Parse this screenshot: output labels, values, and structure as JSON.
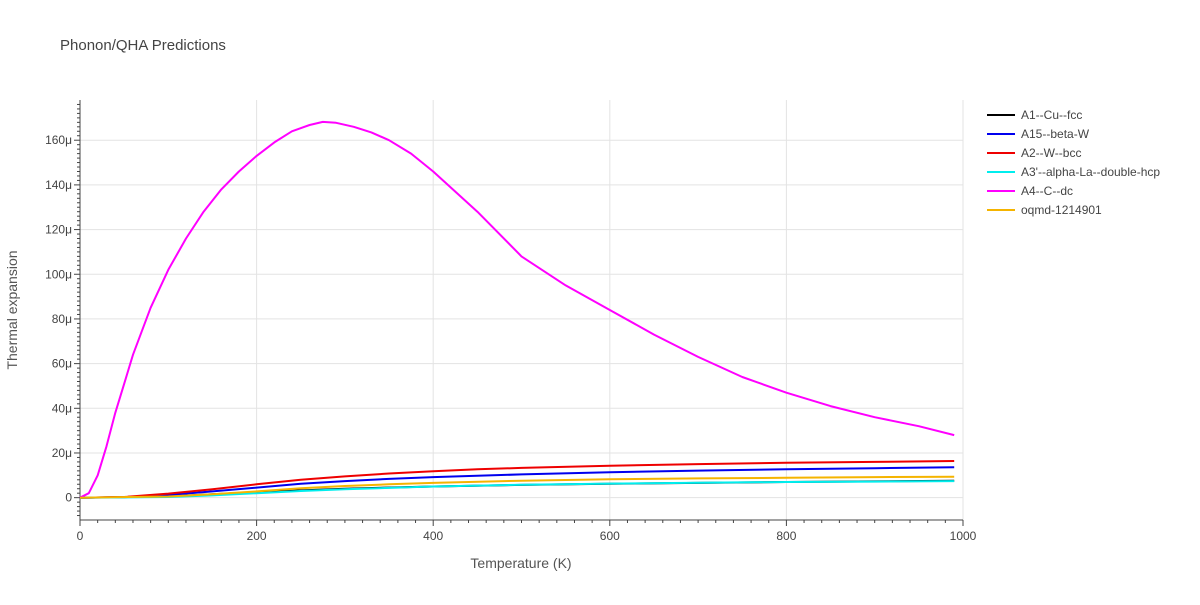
{
  "chart_data": {
    "type": "line",
    "title": "Phonon/QHA Predictions",
    "xlabel": "Temperature (K)",
    "ylabel": "Thermal expansion",
    "xlim": [
      0,
      1000
    ],
    "ylim": [
      -10,
      178
    ],
    "grid": true,
    "legend_position": "right",
    "x_ticks": [
      0,
      200,
      400,
      600,
      800,
      1000
    ],
    "x_tick_labels": [
      "0",
      "200",
      "400",
      "600",
      "800",
      "1000"
    ],
    "y_ticks": [
      0,
      20,
      40,
      60,
      80,
      100,
      120,
      140,
      160
    ],
    "y_tick_labels": [
      "0",
      "20μ",
      "40μ",
      "60μ",
      "80μ",
      "100μ",
      "120μ",
      "140μ",
      "160μ"
    ],
    "series": [
      {
        "name": "A1--Cu--fcc",
        "color": "#000000",
        "x": [
          0,
          100,
          200,
          300,
          400,
          500,
          600,
          700,
          800,
          900,
          990
        ],
        "y": [
          0,
          0.5,
          2.5,
          4.0,
          5.0,
          5.7,
          6.2,
          6.6,
          7.0,
          7.3,
          7.6
        ]
      },
      {
        "name": "A15--beta-W",
        "color": "#0000ee",
        "x": [
          0,
          50,
          100,
          150,
          200,
          250,
          300,
          350,
          400,
          500,
          600,
          700,
          800,
          900,
          990
        ],
        "y": [
          0,
          0.2,
          1.2,
          2.8,
          4.5,
          6.2,
          7.4,
          8.4,
          9.2,
          10.4,
          11.4,
          12.1,
          12.7,
          13.2,
          13.6
        ]
      },
      {
        "name": "A2--W--bcc",
        "color": "#ee0000",
        "x": [
          0,
          50,
          100,
          150,
          200,
          250,
          300,
          350,
          400,
          450,
          500,
          600,
          700,
          800,
          900,
          990
        ],
        "y": [
          0,
          0.3,
          1.8,
          3.8,
          6.0,
          8.0,
          9.5,
          10.8,
          11.8,
          12.7,
          13.3,
          14.3,
          15.0,
          15.6,
          16.0,
          16.4
        ]
      },
      {
        "name": "A3'--alpha-La--double-hcp",
        "color": "#00eeee",
        "x": [
          0,
          100,
          150,
          200,
          250,
          300,
          400,
          500,
          600,
          700,
          800,
          900,
          990
        ],
        "y": [
          0,
          0.3,
          1.0,
          2.0,
          3.0,
          3.8,
          5.0,
          5.8,
          6.3,
          6.7,
          7.0,
          7.2,
          7.4
        ]
      },
      {
        "name": "A4--C--dc",
        "color": "#ff00ff",
        "x": [
          0,
          10,
          20,
          30,
          40,
          50,
          60,
          80,
          100,
          120,
          140,
          160,
          180,
          200,
          220,
          240,
          260,
          275,
          290,
          310,
          330,
          350,
          375,
          400,
          450,
          500,
          550,
          600,
          650,
          700,
          750,
          800,
          850,
          900,
          950,
          990
        ],
        "y": [
          0,
          2,
          10,
          23,
          38,
          51,
          64,
          85,
          102,
          116,
          128,
          138,
          146,
          153,
          159,
          164,
          166.8,
          168.2,
          167.8,
          166,
          163.5,
          160,
          154,
          146,
          128,
          108,
          95,
          84,
          73,
          63,
          54,
          47,
          41,
          36,
          32,
          28
        ]
      },
      {
        "name": "oqmd-1214901",
        "color": "#f5b400",
        "x": [
          0,
          100,
          150,
          200,
          250,
          300,
          350,
          400,
          500,
          600,
          700,
          800,
          900,
          990
        ],
        "y": [
          0,
          0.5,
          1.5,
          2.8,
          4.2,
          5.2,
          6.0,
          6.6,
          7.6,
          8.2,
          8.6,
          8.9,
          9.2,
          9.4
        ]
      }
    ]
  }
}
